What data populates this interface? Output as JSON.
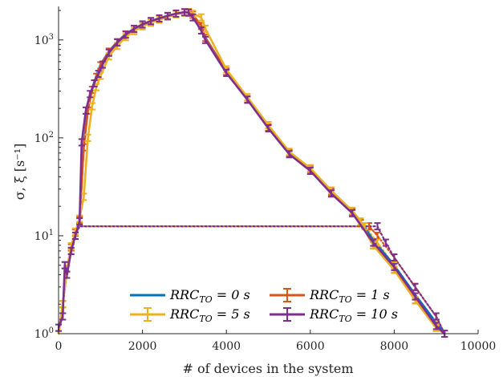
{
  "chart_data": {
    "type": "line",
    "xlabel": "# of devices in the system",
    "ylabel": "σ, ξ [s⁻¹]",
    "xlim": [
      0,
      10000
    ],
    "ylim": [
      1,
      2000
    ],
    "yscale": "log",
    "x_ticks": [
      "0",
      "2000",
      "4000",
      "6000",
      "8000",
      "10000"
    ],
    "y_ticks": [
      {
        "value": 1,
        "base": "10",
        "exp": "0"
      },
      {
        "value": 10,
        "base": "10",
        "exp": "1"
      },
      {
        "value": 100,
        "base": "10",
        "exp": "2"
      },
      {
        "value": 1000,
        "base": "10",
        "exp": "3"
      }
    ],
    "grid": false,
    "legend_position": "bottom-center",
    "series": [
      {
        "name": "RRC_TO = 0 s",
        "legend_main": "RRC",
        "legend_sub": "TO",
        "legend_rest": " = 0 s",
        "color": "#0072BD",
        "errorbars": false,
        "sigma": [
          [
            0,
            1.0
          ],
          [
            100,
            2.0
          ],
          [
            200,
            4.5
          ],
          [
            300,
            7.5
          ],
          [
            400,
            10.5
          ],
          [
            500,
            14
          ],
          [
            600,
            85
          ],
          [
            700,
            200
          ],
          [
            800,
            320
          ],
          [
            900,
            430
          ],
          [
            1000,
            560
          ],
          [
            1200,
            770
          ],
          [
            1400,
            960
          ],
          [
            1600,
            1150
          ],
          [
            1800,
            1300
          ],
          [
            2000,
            1450
          ],
          [
            2200,
            1560
          ],
          [
            2400,
            1660
          ],
          [
            2600,
            1760
          ],
          [
            2800,
            1850
          ],
          [
            3000,
            1920
          ],
          [
            3100,
            1930
          ],
          [
            3200,
            1820
          ],
          [
            3400,
            1400
          ],
          [
            3500,
            1060
          ],
          [
            4000,
            480
          ],
          [
            4500,
            250
          ],
          [
            5000,
            130
          ],
          [
            5500,
            70
          ],
          [
            6000,
            48
          ],
          [
            6500,
            28
          ],
          [
            7000,
            18
          ],
          [
            7200,
            14
          ],
          [
            7500,
            9
          ],
          [
            8000,
            5
          ],
          [
            8500,
            2.5
          ],
          [
            9000,
            1.3
          ],
          [
            9200,
            1.0
          ]
        ],
        "xi": [
          [
            0,
            1.0
          ],
          [
            100,
            2.0
          ],
          [
            200,
            4.5
          ],
          [
            300,
            7.5
          ],
          [
            400,
            10.5
          ],
          [
            500,
            12.5
          ],
          [
            700,
            12.5
          ],
          [
            1000,
            12.5
          ],
          [
            2000,
            12.5
          ],
          [
            3000,
            12.5
          ],
          [
            4000,
            12.5
          ],
          [
            5000,
            12.5
          ],
          [
            6000,
            12.5
          ],
          [
            7000,
            12.5
          ],
          [
            7200,
            12.5
          ],
          [
            7500,
            9
          ],
          [
            8000,
            5
          ],
          [
            8500,
            2.5
          ],
          [
            9000,
            1.3
          ],
          [
            9200,
            1.0
          ]
        ]
      },
      {
        "name": "RRC_TO = 1 s",
        "legend_main": "RRC",
        "legend_sub": "TO",
        "legend_rest": " = 1 s",
        "color": "#D95319",
        "errorbars": true,
        "sigma": [
          [
            0,
            1.0
          ],
          [
            100,
            2.0
          ],
          [
            200,
            4.6
          ],
          [
            300,
            7.6
          ],
          [
            400,
            10.8
          ],
          [
            500,
            14.5
          ],
          [
            600,
            80
          ],
          [
            700,
            190
          ],
          [
            800,
            310
          ],
          [
            900,
            420
          ],
          [
            1000,
            550
          ],
          [
            1200,
            760
          ],
          [
            1400,
            950
          ],
          [
            1600,
            1140
          ],
          [
            1800,
            1290
          ],
          [
            2000,
            1440
          ],
          [
            2200,
            1550
          ],
          [
            2400,
            1650
          ],
          [
            2600,
            1750
          ],
          [
            2800,
            1840
          ],
          [
            3000,
            1910
          ],
          [
            3100,
            1920
          ],
          [
            3200,
            1810
          ],
          [
            3400,
            1390
          ],
          [
            3500,
            1050
          ],
          [
            4000,
            475
          ],
          [
            4500,
            248
          ],
          [
            5000,
            128
          ],
          [
            5500,
            70
          ],
          [
            6000,
            48
          ],
          [
            6500,
            28
          ],
          [
            7000,
            17.5
          ],
          [
            7200,
            13.5
          ],
          [
            7500,
            8
          ],
          [
            8000,
            4.5
          ],
          [
            8500,
            2.2
          ],
          [
            9000,
            1.15
          ],
          [
            9200,
            1.0
          ]
        ],
        "xi": [
          [
            0,
            1.0
          ],
          [
            100,
            2.0
          ],
          [
            200,
            4.6
          ],
          [
            300,
            7.6
          ],
          [
            400,
            10.8
          ],
          [
            500,
            12.5
          ],
          [
            700,
            12.5
          ],
          [
            1000,
            12.5
          ],
          [
            2000,
            12.5
          ],
          [
            3000,
            12.5
          ],
          [
            4000,
            12.5
          ],
          [
            5000,
            12.5
          ],
          [
            6000,
            12.5
          ],
          [
            7000,
            12.5
          ],
          [
            7400,
            12.5
          ],
          [
            7600,
            10
          ],
          [
            8000,
            6
          ],
          [
            8500,
            3
          ],
          [
            9000,
            1.5
          ],
          [
            9200,
            1.0
          ]
        ]
      },
      {
        "name": "RRC_TO = 5 s",
        "legend_main": "RRC",
        "legend_sub": "TO",
        "legend_rest": " = 5 s",
        "color": "#EDB120",
        "errorbars": true,
        "sigma": [
          [
            0,
            1.0
          ],
          [
            100,
            2.0
          ],
          [
            200,
            4.6
          ],
          [
            300,
            7.8
          ],
          [
            400,
            11
          ],
          [
            500,
            15
          ],
          [
            600,
            25
          ],
          [
            700,
            100
          ],
          [
            800,
            210
          ],
          [
            900,
            330
          ],
          [
            1000,
            430
          ],
          [
            1200,
            680
          ],
          [
            1400,
            870
          ],
          [
            1600,
            1070
          ],
          [
            1800,
            1230
          ],
          [
            2000,
            1380
          ],
          [
            2200,
            1500
          ],
          [
            2400,
            1610
          ],
          [
            2600,
            1720
          ],
          [
            2800,
            1830
          ],
          [
            3000,
            1900
          ],
          [
            3100,
            1920
          ],
          [
            3200,
            1850
          ],
          [
            3400,
            1700
          ],
          [
            3500,
            1300
          ],
          [
            4000,
            500
          ],
          [
            4500,
            260
          ],
          [
            5000,
            135
          ],
          [
            5500,
            72
          ],
          [
            6000,
            49
          ],
          [
            6500,
            29
          ],
          [
            7000,
            18
          ],
          [
            7200,
            14
          ],
          [
            7500,
            8
          ],
          [
            8000,
            4.5
          ],
          [
            8500,
            2.2
          ],
          [
            9000,
            1.15
          ],
          [
            9200,
            1.0
          ]
        ],
        "xi": [
          [
            0,
            1.0
          ],
          [
            100,
            2.0
          ],
          [
            200,
            4.6
          ],
          [
            300,
            7.8
          ],
          [
            400,
            11
          ],
          [
            500,
            12.5
          ],
          [
            700,
            12.5
          ],
          [
            1000,
            12.5
          ],
          [
            2000,
            12.5
          ],
          [
            3000,
            12.5
          ],
          [
            4000,
            12.5
          ],
          [
            5000,
            12.5
          ],
          [
            6000,
            12.5
          ],
          [
            7000,
            12.5
          ],
          [
            7300,
            12.5
          ],
          [
            7600,
            8.5
          ],
          [
            8000,
            5
          ],
          [
            8500,
            2.4
          ],
          [
            9000,
            1.3
          ],
          [
            9200,
            1.0
          ]
        ]
      },
      {
        "name": "RRC_TO = 10 s",
        "legend_main": "RRC",
        "legend_sub": "TO",
        "legend_rest": " = 10 s",
        "color": "#7E2F8E",
        "errorbars": true,
        "sigma": [
          [
            0,
            1.15
          ],
          [
            100,
            1.5
          ],
          [
            150,
            5
          ],
          [
            200,
            4
          ],
          [
            300,
            7
          ],
          [
            400,
            10
          ],
          [
            500,
            14
          ],
          [
            550,
            90
          ],
          [
            650,
            190
          ],
          [
            750,
            280
          ],
          [
            850,
            360
          ],
          [
            950,
            450
          ],
          [
            1050,
            560
          ],
          [
            1200,
            740
          ],
          [
            1400,
            940
          ],
          [
            1600,
            1130
          ],
          [
            1800,
            1300
          ],
          [
            2000,
            1440
          ],
          [
            2200,
            1560
          ],
          [
            2400,
            1660
          ],
          [
            2600,
            1760
          ],
          [
            2800,
            1860
          ],
          [
            3000,
            1920
          ],
          [
            3100,
            1900
          ],
          [
            3200,
            1700
          ],
          [
            3400,
            1250
          ],
          [
            3500,
            1000
          ],
          [
            4000,
            460
          ],
          [
            4500,
            245
          ],
          [
            5000,
            125
          ],
          [
            5500,
            68
          ],
          [
            6000,
            46
          ],
          [
            6500,
            27
          ],
          [
            7000,
            17
          ],
          [
            7500,
            8.5
          ],
          [
            8000,
            4.8
          ],
          [
            8500,
            2.4
          ],
          [
            9000,
            1.2
          ],
          [
            9200,
            1.0
          ]
        ],
        "xi": [
          [
            0,
            1.15
          ],
          [
            100,
            1.5
          ],
          [
            150,
            5
          ],
          [
            200,
            4
          ],
          [
            300,
            7
          ],
          [
            400,
            10
          ],
          [
            500,
            12.5
          ],
          [
            700,
            12.5
          ],
          [
            1000,
            12.5
          ],
          [
            2000,
            12.5
          ],
          [
            3000,
            12.5
          ],
          [
            4000,
            12.5
          ],
          [
            5000,
            12.5
          ],
          [
            6000,
            12.5
          ],
          [
            7000,
            12.5
          ],
          [
            7600,
            12.5
          ],
          [
            7800,
            8.5
          ],
          [
            8000,
            6
          ],
          [
            8500,
            3
          ],
          [
            9000,
            1.5
          ],
          [
            9200,
            1.0
          ]
        ]
      }
    ]
  }
}
